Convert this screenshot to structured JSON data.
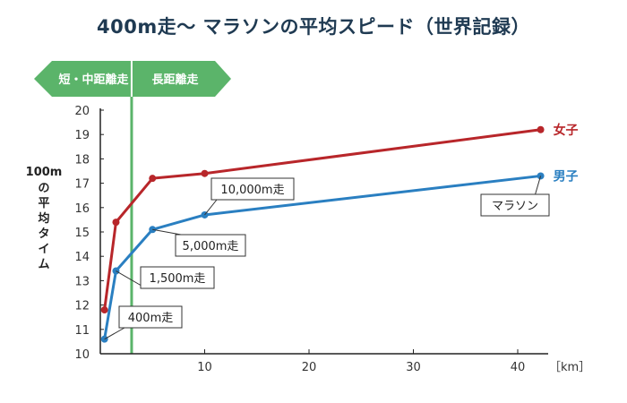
{
  "chart_data": {
    "type": "line",
    "title": "400m走〜 マラソンの平均スピード（世界記録）",
    "xlabel": "［km］",
    "ylabel": "100mの平均タイム",
    "xlim": [
      0,
      42.195
    ],
    "ylim": [
      10,
      20
    ],
    "x_ticks": [
      10,
      20,
      30,
      40
    ],
    "y_ticks": [
      10,
      11,
      12,
      13,
      14,
      15,
      16,
      17,
      18,
      19,
      20
    ],
    "grid": false,
    "series": [
      {
        "name": "女子",
        "color": "#b8262a",
        "x": [
          0.4,
          1.5,
          5,
          10,
          42.195
        ],
        "y": [
          11.8,
          15.4,
          17.2,
          17.4,
          19.2
        ]
      },
      {
        "name": "男子",
        "color": "#2a7fc1",
        "x": [
          0.4,
          1.5,
          5,
          10,
          42.195
        ],
        "y": [
          10.6,
          13.4,
          15.1,
          15.7,
          17.3
        ]
      }
    ],
    "vline": {
      "x": 3,
      "color": "#5bb46a"
    },
    "bands": {
      "left": "短・中距離走",
      "right": "長距離走",
      "color": "#5bb46a"
    },
    "annotations": [
      {
        "text": "400m走",
        "series": 1,
        "point": 0
      },
      {
        "text": "1,500m走",
        "series": 1,
        "point": 1
      },
      {
        "text": "5,000m走",
        "series": 1,
        "point": 2
      },
      {
        "text": "10,000m走",
        "series": 1,
        "point": 3
      },
      {
        "text": "マラソン",
        "series": 1,
        "point": 4
      }
    ]
  }
}
